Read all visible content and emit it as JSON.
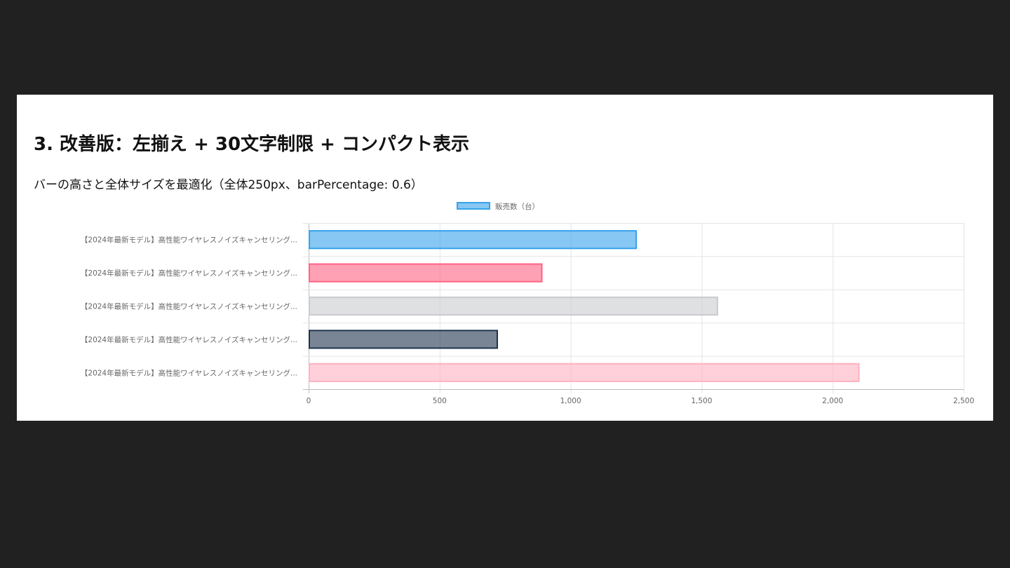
{
  "page": {
    "heading": "3. 改善版：左揃え + 30文字制限 + コンパクト表示",
    "subtitle": "バーの高さと全体サイズを最適化（全体250px、barPercentage: 0.6）"
  },
  "chart_data": {
    "type": "bar",
    "orientation": "horizontal",
    "categories": [
      "【2024年最新モデル】高性能ワイヤレスノイズキャンセリング...",
      "【2024年最新モデル】高性能ワイヤレスノイズキャンセリング...",
      "【2024年最新モデル】高性能ワイヤレスノイズキャンセリング...",
      "【2024年最新モデル】高性能ワイヤレスノイズキャンセリング...",
      "【2024年最新モデル】高性能ワイヤレスノイズキャンセリング..."
    ],
    "series": [
      {
        "name": "販売数（台）",
        "values": [
          1250,
          890,
          1560,
          720,
          2100
        ]
      }
    ],
    "bar_colors": [
      {
        "fill": "#36a2eb",
        "stroke": "#36a2eb"
      },
      {
        "fill": "#ff6384",
        "stroke": "#ff6384"
      },
      {
        "fill": "#c9cbcf",
        "stroke": "#c9cbcf"
      },
      {
        "fill": "#1f344d",
        "stroke": "#1f344d"
      },
      {
        "fill": "#ffb1c1",
        "stroke": "#ffb1c1"
      }
    ],
    "xlim": [
      0,
      2500
    ],
    "xticks": [
      0,
      500,
      1000,
      1500,
      2000,
      2500
    ],
    "xtick_labels": [
      "0",
      "500",
      "1,000",
      "1,500",
      "2,000",
      "2,500"
    ],
    "grid": true,
    "legend_position": "top",
    "bar_percentage": 0.6
  }
}
